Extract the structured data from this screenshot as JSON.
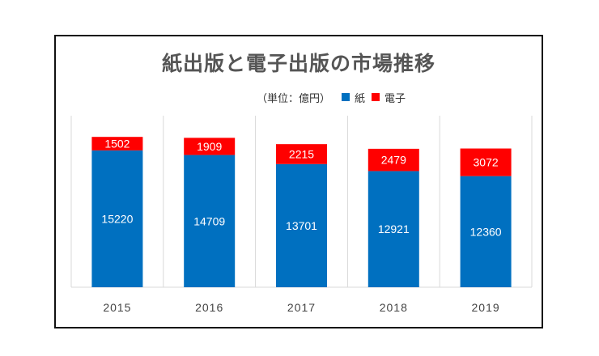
{
  "chart_data": {
    "type": "bar",
    "stacked": true,
    "title": "紙出版と電子出版の市場推移",
    "unit_note": "（単位：億円）",
    "categories": [
      "2015",
      "2016",
      "2017",
      "2018",
      "2019"
    ],
    "series": [
      {
        "name": "紙",
        "values": [
          15220,
          14709,
          13701,
          12921,
          12360
        ],
        "color": "#0070C0"
      },
      {
        "name": "電子",
        "values": [
          1502,
          1909,
          2215,
          2479,
          3072
        ],
        "color": "#FF0000"
      }
    ],
    "ylim": [
      0,
      18000
    ],
    "grid": false,
    "vertical_separators": true,
    "legend_position": "top-right",
    "data_labels": true
  }
}
